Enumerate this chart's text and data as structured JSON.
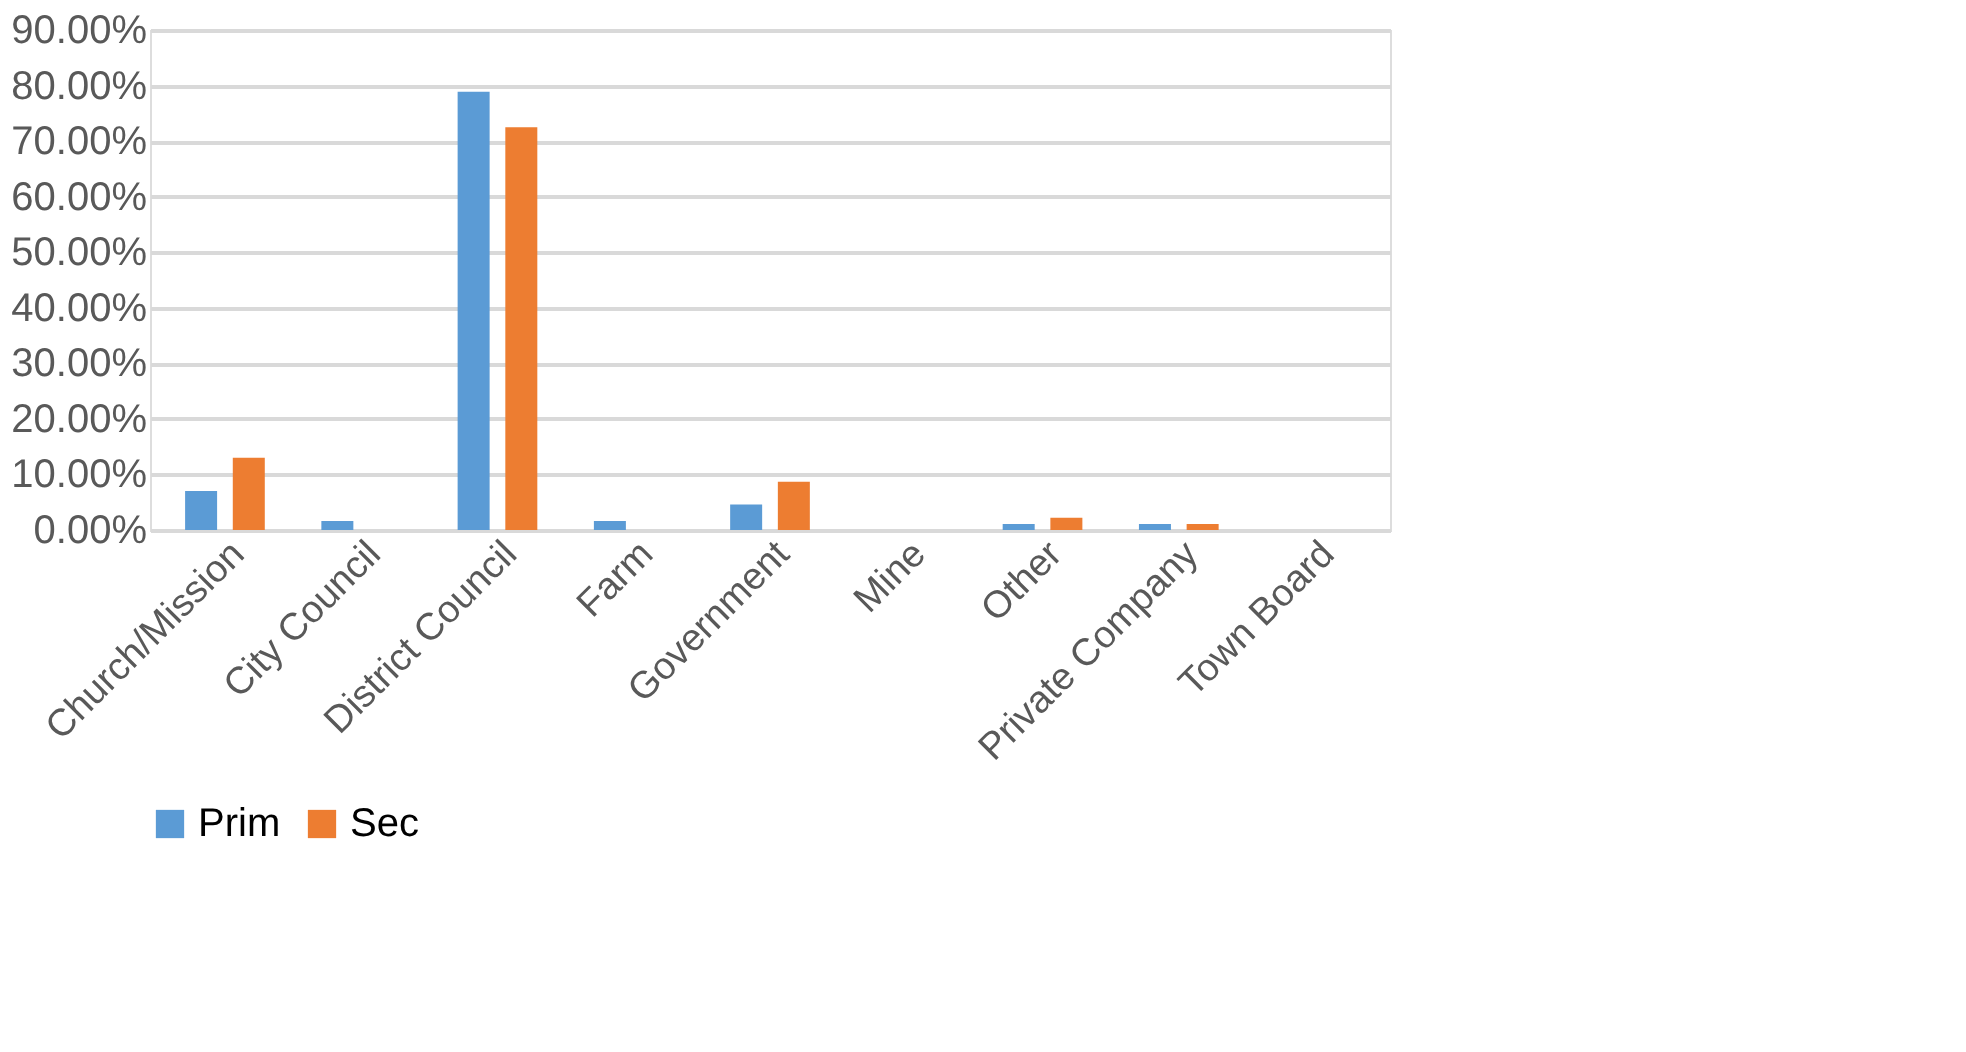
{
  "chart_data": {
    "type": "bar",
    "categories": [
      "Church/Mission",
      "City Council",
      "District Council",
      "Farm",
      "Government",
      "Mine",
      "Other",
      "Private Company",
      "Town Board"
    ],
    "series": [
      {
        "name": "Prim",
        "color": "#5b9bd5",
        "values": [
          7.0,
          1.6,
          78.9,
          1.6,
          4.6,
          0,
          1.1,
          1.1,
          0
        ]
      },
      {
        "name": "Sec",
        "color": "#ed7d31",
        "values": [
          13.0,
          0,
          72.5,
          0,
          8.7,
          0,
          2.2,
          1.1,
          0
        ]
      }
    ],
    "ylim": [
      0,
      90
    ],
    "yticks": [
      {
        "value": 0,
        "label": "0.00%"
      },
      {
        "value": 10,
        "label": "10.00%"
      },
      {
        "value": 20,
        "label": "20.00%"
      },
      {
        "value": 30,
        "label": "30.00%"
      },
      {
        "value": 40,
        "label": "40.00%"
      },
      {
        "value": 50,
        "label": "50.00%"
      },
      {
        "value": 60,
        "label": "60.00%"
      },
      {
        "value": 70,
        "label": "70.00%"
      },
      {
        "value": 80,
        "label": "80.00%"
      },
      {
        "value": 90,
        "label": "90.00%"
      }
    ],
    "grid": "y",
    "legend": "bottom"
  }
}
